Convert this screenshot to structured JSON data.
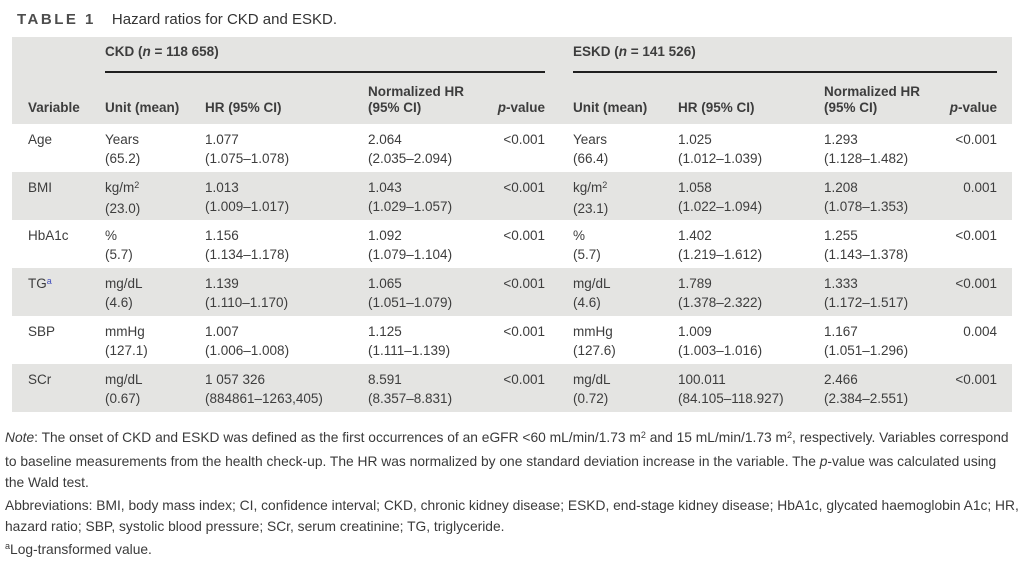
{
  "caption": {
    "label": "TABLE 1",
    "text": "Hazard ratios for CKD and ESKD."
  },
  "colors": {
    "row_shade": "#e4e4e2",
    "rule_black": "#1f1f1f",
    "footnote_link_blue": "#4450bd",
    "text": "#3d3d3d"
  },
  "table": {
    "groups": {
      "ckd": {
        "prefix": "CKD (",
        "n": "n",
        "suffix": " = 118 658)"
      },
      "eskd": {
        "prefix": "ESKD (",
        "n": "n",
        "suffix": " = 141 526)"
      }
    },
    "columns": {
      "variable": "Variable",
      "unit": "Unit (mean)",
      "hr": "HR (95% CI)",
      "nhr_line1": "Normalized HR",
      "nhr_line2": "(95% CI)",
      "p_italic": "p",
      "p_suffix": "-value"
    },
    "rows": [
      {
        "variable": "Age",
        "variable_sup": "",
        "ckd": {
          "unit": "Years",
          "unit_sup": "",
          "mean": "(65.2)",
          "hr": "1.077",
          "hr_ci": "(1.075–1.078)",
          "nhr": "2.064",
          "nhr_ci": "(2.035–2.094)",
          "p": "<0.001"
        },
        "eskd": {
          "unit": "Years",
          "unit_sup": "",
          "mean": "(66.4)",
          "hr": "1.025",
          "hr_ci": "(1.012–1.039)",
          "nhr": "1.293",
          "nhr_ci": "(1.128–1.482)",
          "p": "<0.001"
        }
      },
      {
        "variable": "BMI",
        "variable_sup": "",
        "ckd": {
          "unit": "kg/m",
          "unit_sup": "2",
          "mean": "(23.0)",
          "hr": "1.013",
          "hr_ci": "(1.009–1.017)",
          "nhr": "1.043",
          "nhr_ci": "(1.029–1.057)",
          "p": "<0.001"
        },
        "eskd": {
          "unit": "kg/m",
          "unit_sup": "2",
          "mean": "(23.1)",
          "hr": "1.058",
          "hr_ci": "(1.022–1.094)",
          "nhr": "1.208",
          "nhr_ci": "(1.078–1.353)",
          "p": "0.001"
        }
      },
      {
        "variable": "HbA1c",
        "variable_sup": "",
        "ckd": {
          "unit": "%",
          "unit_sup": "",
          "mean": "(5.7)",
          "hr": "1.156",
          "hr_ci": "(1.134–1.178)",
          "nhr": "1.092",
          "nhr_ci": "(1.079–1.104)",
          "p": "<0.001"
        },
        "eskd": {
          "unit": "%",
          "unit_sup": "",
          "mean": "(5.7)",
          "hr": "1.402",
          "hr_ci": "(1.219–1.612)",
          "nhr": "1.255",
          "nhr_ci": "(1.143–1.378)",
          "p": "<0.001"
        }
      },
      {
        "variable": "TG",
        "variable_sup": "a",
        "ckd": {
          "unit": "mg/dL",
          "unit_sup": "",
          "mean": "(4.6)",
          "hr": "1.139",
          "hr_ci": "(1.110–1.170)",
          "nhr": "1.065",
          "nhr_ci": "(1.051–1.079)",
          "p": "<0.001"
        },
        "eskd": {
          "unit": "mg/dL",
          "unit_sup": "",
          "mean": "(4.6)",
          "hr": "1.789",
          "hr_ci": "(1.378–2.322)",
          "nhr": "1.333",
          "nhr_ci": "(1.172–1.517)",
          "p": "<0.001"
        }
      },
      {
        "variable": "SBP",
        "variable_sup": "",
        "ckd": {
          "unit": "mmHg",
          "unit_sup": "",
          "mean": "(127.1)",
          "hr": "1.007",
          "hr_ci": "(1.006–1.008)",
          "nhr": "1.125",
          "nhr_ci": "(1.111–1.139)",
          "p": "<0.001"
        },
        "eskd": {
          "unit": "mmHg",
          "unit_sup": "",
          "mean": "(127.6)",
          "hr": "1.009",
          "hr_ci": "(1.003–1.016)",
          "nhr": "1.167",
          "nhr_ci": "(1.051–1.296)",
          "p": "0.004"
        }
      },
      {
        "variable": "SCr",
        "variable_sup": "",
        "ckd": {
          "unit": "mg/dL",
          "unit_sup": "",
          "mean": "(0.67)",
          "hr": "1 057 326",
          "hr_ci": "(884861–1263,405)",
          "nhr": "8.591",
          "nhr_ci": "(8.357–8.831)",
          "p": "<0.001"
        },
        "eskd": {
          "unit": "mg/dL",
          "unit_sup": "",
          "mean": "(0.72)",
          "hr": "100.011",
          "hr_ci": "(84.105–118.927)",
          "nhr": "2.466",
          "nhr_ci": "(2.384–2.551)",
          "p": "<0.001"
        }
      }
    ]
  },
  "footnotes": {
    "note_segments": [
      {
        "t": "Note",
        "s": "i"
      },
      {
        "t": ": The onset of CKD and ESKD was defined as the first occurrences of an eGFR <60 mL/min/1.73 m",
        "s": ""
      },
      {
        "t": "2",
        "s": "sup"
      },
      {
        "t": " and 15 mL/min/1.73 m",
        "s": ""
      },
      {
        "t": "2",
        "s": "sup"
      },
      {
        "t": ", respectively. Variables correspond to baseline measurements from the health check-up. The HR was normalized by one standard deviation increase in the variable. The ",
        "s": ""
      },
      {
        "t": "p",
        "s": "i"
      },
      {
        "t": "-value was calculated using the Wald test.",
        "s": ""
      }
    ],
    "abbreviations": "Abbreviations: BMI, body mass index; CI, confidence interval; CKD, chronic kidney disease; ESKD, end-stage kidney disease; HbA1c, glycated haemoglobin A1c; HR, hazard ratio; SBP, systolic blood pressure; SCr, serum creatinine; TG, triglyceride.",
    "footnote_a_segments": [
      {
        "t": "a",
        "s": "sup"
      },
      {
        "t": "Log-transformed value.",
        "s": ""
      }
    ]
  }
}
